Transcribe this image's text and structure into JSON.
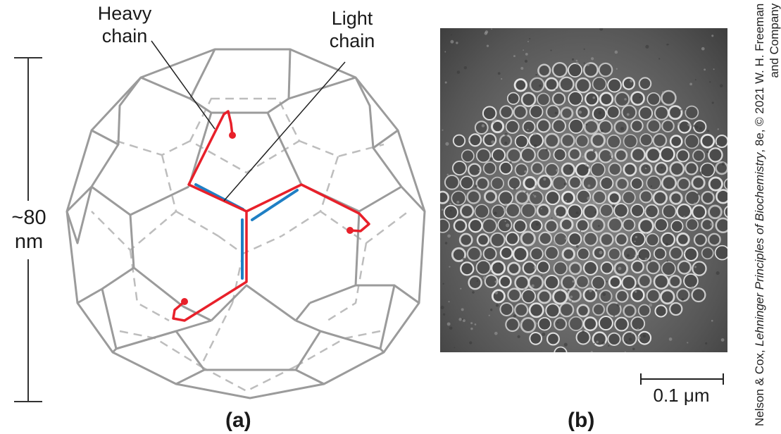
{
  "panel_a": {
    "label": "(a)",
    "heavy_chain_label_line1": "Heavy",
    "heavy_chain_label_line2": "chain",
    "light_chain_label_line1": "Light",
    "light_chain_label_line2": "chain",
    "size_label_line1": "~80",
    "size_label_line2": "nm",
    "colors": {
      "heavy_chain": "#e8202a",
      "light_chain": "#1f7fc4",
      "lattice": "#9b9b9b",
      "lattice_back": "#bdbdbd"
    }
  },
  "panel_b": {
    "label": "(b)",
    "scale_bar_label": "0.1 μm"
  },
  "credit": {
    "line1_prefix": "Nelson & Cox, ",
    "line1_title": "Lehninger Principles of Biochemistry",
    "line1_suffix": ", 8e, © 2021 W. H. Freeman",
    "line2": "and Company"
  }
}
